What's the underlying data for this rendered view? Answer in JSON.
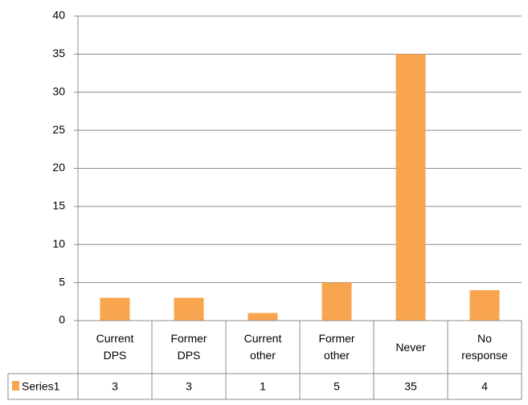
{
  "chart_data": {
    "type": "bar",
    "categories": [
      "Current DPS",
      "Former DPS",
      "Current other",
      "Former other",
      "Never",
      "No response"
    ],
    "series": [
      {
        "name": "Series1",
        "color": "#f9a54f",
        "values": [
          3,
          3,
          1,
          5,
          35,
          4
        ]
      }
    ],
    "ylim": [
      0,
      40
    ],
    "yticks": [
      0,
      5,
      10,
      15,
      20,
      25,
      30,
      35,
      40
    ],
    "grid": true,
    "data_table": true
  }
}
